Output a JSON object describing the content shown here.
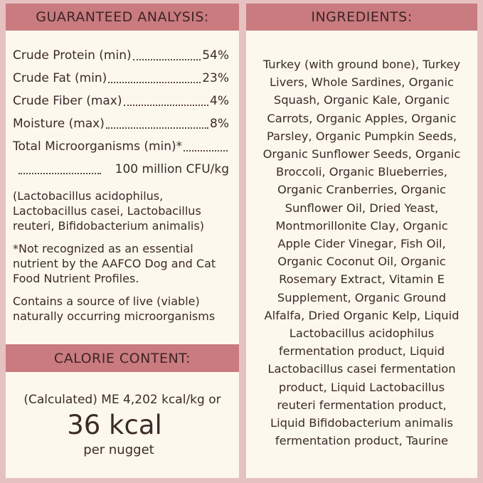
{
  "analysis": {
    "title": "GUARANTEED ANALYSIS:",
    "rows": [
      {
        "label": "Crude Protein (min)",
        "value": "54%"
      },
      {
        "label": "Crude Fat (min)",
        "value": "23%"
      },
      {
        "label": "Crude Fiber (max)",
        "value": "4%"
      },
      {
        "label": "Moisture (max)",
        "value": "8%"
      },
      {
        "label": "Total Microorganisms (min)*",
        "value": "100 million CFU/kg"
      }
    ],
    "notes": [
      [
        "(Lactobacillus acidophilus,",
        "Lactobacillus casei, Lactobacillus",
        "reuteri, Bifidobacterium animalis)"
      ],
      [
        "*Not recognized as an essential",
        "nutrient by the AAFCO Dog and Cat",
        "Food Nutrient Profiles."
      ],
      [
        "Contains a source of live (viable)",
        "naturally occurring microorganisms"
      ]
    ]
  },
  "calorie": {
    "title": "CALORIE CONTENT:",
    "line": "(Calculated) ME 4,202 kcal/kg or",
    "big": "36 kcal",
    "unit": "per nugget"
  },
  "ingredients": {
    "title": "INGREDIENTS:",
    "lines": [
      "Turkey (with ground bone), Turkey",
      "Livers,  Whole Sardines, Organic",
      "Squash, Organic Kale, Organic",
      "Carrots, Organic Apples, Organic",
      "Parsley, Organic Pumpkin Seeds,",
      "Organic Sunflower Seeds, Organic",
      "Broccoli, Organic Blueberries,",
      "Organic Cranberries, Organic",
      "Sunflower Oil, Dried Yeast,",
      "Montmorillonite Clay, Organic",
      "Apple Cider Vinegar, Fish Oil,",
      "Organic Coconut Oil, Organic",
      "Rosemary Extract, Vitamin E",
      "Supplement, Organic Ground",
      "Alfalfa, Dried Organic Kelp, Liquid",
      "Lactobacillus acidophilus",
      "fermentation product, Liquid",
      "Lactobacillus casei fermentation",
      "product, Liquid Lactobacillus",
      "reuteri fermentation product,",
      "Liquid Bifidobacterium animalis",
      "fermentation product, Taurine"
    ]
  }
}
